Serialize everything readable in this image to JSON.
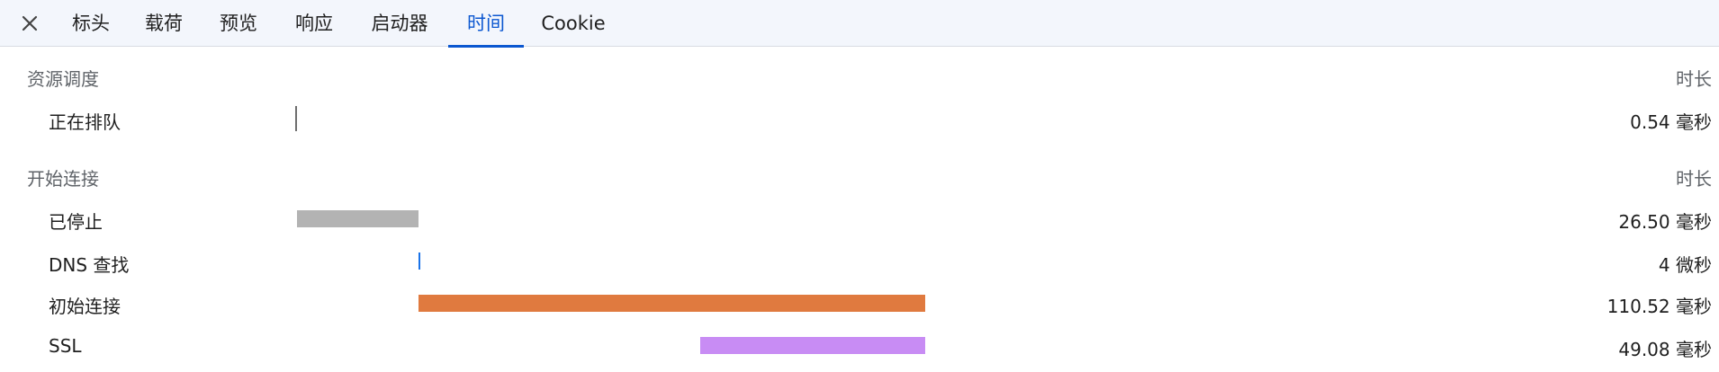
{
  "tabs": [
    {
      "id": "headers",
      "label": "标头"
    },
    {
      "id": "payload",
      "label": "载荷"
    },
    {
      "id": "preview",
      "label": "预览"
    },
    {
      "id": "response",
      "label": "响应"
    },
    {
      "id": "initiator",
      "label": "启动器"
    },
    {
      "id": "timing",
      "label": "时间",
      "active": true
    },
    {
      "id": "cookies",
      "label": "Cookie"
    }
  ],
  "sections": [
    {
      "title": "资源调度",
      "duration_header": "时长",
      "rows": [
        {
          "label": "正在排队",
          "value": "0.54 毫秒",
          "color": "#6e6e6e"
        }
      ]
    },
    {
      "title": "开始连接",
      "duration_header": "时长",
      "rows": [
        {
          "label": "已停止",
          "value": "26.50 毫秒",
          "color": "#b3b3b3"
        },
        {
          "label": "DNS 查找",
          "value": "4 微秒",
          "color": "#1a73e8"
        },
        {
          "label": "初始连接",
          "value": "110.52 毫秒",
          "color": "#e07a3f"
        },
        {
          "label": "SSL",
          "value": "49.08 毫秒",
          "color": "#c88cf4"
        }
      ]
    }
  ],
  "colors": {
    "active_tab": "#0b57d0",
    "tabbar_bg": "#f3f6fc"
  },
  "icons": {
    "close": "close-icon"
  }
}
